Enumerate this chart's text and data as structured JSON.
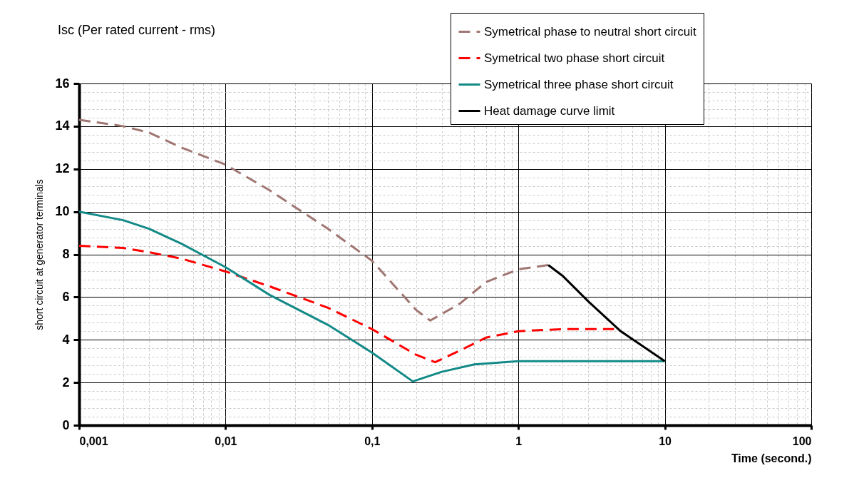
{
  "chart_data": {
    "type": "line",
    "title": "Isc  (Per rated current - rms)",
    "xlabel": "Time (second.)",
    "ylabel": "short circuit at generator terminals",
    "log": "x",
    "grid": true,
    "legend": "top right",
    "xlim": [
      0.001,
      100
    ],
    "xticks": [
      {
        "value": 0.001,
        "label": "0,001"
      },
      {
        "value": 0.01,
        "label": "0,01"
      },
      {
        "value": 0.1,
        "label": "0,1"
      },
      1,
      10,
      100
    ],
    "ylim": [
      0,
      16
    ],
    "yticks": [
      0,
      2,
      4,
      6,
      8,
      10,
      12,
      14,
      16
    ],
    "series": [
      {
        "name": "Symetrical phase to neutral short circuit",
        "color": "#a07672",
        "line_style": "dashed",
        "x": [
          0.001,
          0.002,
          0.003,
          0.005,
          0.01,
          0.02,
          0.03,
          0.05,
          0.1,
          0.2,
          0.25,
          0.4,
          0.6,
          1,
          1.6
        ],
        "values": [
          14.3,
          14.0,
          13.7,
          13.0,
          12.2,
          11.0,
          10.2,
          9.2,
          7.7,
          5.4,
          4.9,
          5.7,
          6.7,
          7.3,
          7.5
        ]
      },
      {
        "name": "Symetrical two phase short circuit",
        "color": "#ff0000",
        "line_style": "dashed",
        "x": [
          0.001,
          0.002,
          0.003,
          0.005,
          0.01,
          0.02,
          0.05,
          0.1,
          0.2,
          0.27,
          0.4,
          0.6,
          1,
          2,
          4.5
        ],
        "values": [
          8.4,
          8.3,
          8.1,
          7.8,
          7.2,
          6.5,
          5.5,
          4.5,
          3.3,
          2.95,
          3.5,
          4.1,
          4.4,
          4.5,
          4.5
        ]
      },
      {
        "name": "Symetrical three phase short circuit",
        "color": "#138a87",
        "line_style": "solid",
        "x": [
          0.001,
          0.002,
          0.003,
          0.005,
          0.01,
          0.02,
          0.05,
          0.1,
          0.19,
          0.3,
          0.5,
          1,
          10
        ],
        "values": [
          10.0,
          9.6,
          9.2,
          8.5,
          7.4,
          6.1,
          4.7,
          3.4,
          2.05,
          2.5,
          2.85,
          3.0,
          3.0
        ]
      },
      {
        "name": "Heat damage curve limit",
        "color": "#000000",
        "line_style": "solid",
        "x": [
          1.6,
          2,
          3,
          5,
          10
        ],
        "values": [
          7.5,
          7.0,
          5.8,
          4.4,
          3.0
        ]
      }
    ]
  }
}
